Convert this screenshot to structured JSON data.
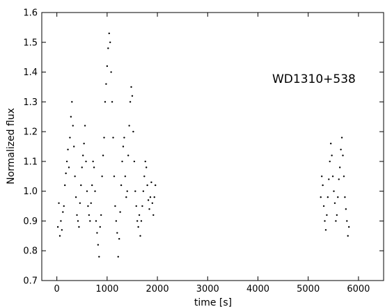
{
  "chart_data": {
    "type": "scatter",
    "title": "",
    "annotation": "WD1310+538",
    "xlabel": "time [s]",
    "ylabel": "Normalized flux",
    "xlim": [
      -300,
      6500
    ],
    "ylim": [
      0.7,
      1.6
    ],
    "grid": false,
    "legend": "none",
    "x_ticks": [
      0,
      1000,
      2000,
      3000,
      4000,
      5000,
      6000
    ],
    "y_ticks": [
      0.7,
      0.8,
      0.9,
      1.0,
      1.1,
      1.2,
      1.3,
      1.4,
      1.5,
      1.6
    ],
    "x_tick_labels": [
      "0",
      "1000",
      "2000",
      "3000",
      "4000",
      "5000",
      "6000"
    ],
    "y_tick_labels": [
      "0.7",
      "0.8",
      "0.9",
      "1.0",
      "1.1",
      "1.2",
      "1.3",
      "1.4",
      "1.5",
      "1.6"
    ],
    "marker_color": "#000000",
    "series": [
      {
        "values": [
          [
            20,
            0.88
          ],
          [
            40,
            0.96
          ],
          [
            60,
            0.85
          ],
          [
            80,
            0.9
          ],
          [
            100,
            0.87
          ],
          [
            120,
            0.93
          ],
          [
            140,
            0.95
          ],
          [
            160,
            1.02
          ],
          [
            180,
            1.06
          ],
          [
            200,
            1.1
          ],
          [
            220,
            1.14
          ],
          [
            240,
            1.08
          ],
          [
            260,
            1.18
          ],
          [
            280,
            1.25
          ],
          [
            300,
            1.3
          ],
          [
            320,
            1.22
          ],
          [
            340,
            1.15
          ],
          [
            360,
            1.05
          ],
          [
            380,
            0.98
          ],
          [
            400,
            0.92
          ],
          [
            420,
            0.9
          ],
          [
            440,
            0.88
          ],
          [
            460,
            0.96
          ],
          [
            480,
            1.02
          ],
          [
            500,
            1.08
          ],
          [
            520,
            1.12
          ],
          [
            540,
            1.16
          ],
          [
            560,
            1.22
          ],
          [
            580,
            1.1
          ],
          [
            600,
            1.0
          ],
          [
            620,
            0.95
          ],
          [
            640,
            0.92
          ],
          [
            660,
            0.9
          ],
          [
            680,
            0.96
          ],
          [
            700,
            1.02
          ],
          [
            720,
            1.1
          ],
          [
            740,
            1.08
          ],
          [
            760,
            1.0
          ],
          [
            780,
            0.9
          ],
          [
            800,
            0.86
          ],
          [
            820,
            0.82
          ],
          [
            840,
            0.78
          ],
          [
            860,
            0.88
          ],
          [
            880,
            0.92
          ],
          [
            900,
            1.05
          ],
          [
            920,
            1.12
          ],
          [
            940,
            1.18
          ],
          [
            960,
            1.3
          ],
          [
            980,
            1.36
          ],
          [
            1000,
            1.42
          ],
          [
            1020,
            1.48
          ],
          [
            1040,
            1.53
          ],
          [
            1060,
            1.5
          ],
          [
            1080,
            1.4
          ],
          [
            1100,
            1.3
          ],
          [
            1120,
            1.18
          ],
          [
            1140,
            1.05
          ],
          [
            1160,
            0.95
          ],
          [
            1180,
            0.9
          ],
          [
            1200,
            0.86
          ],
          [
            1220,
            0.78
          ],
          [
            1240,
            0.84
          ],
          [
            1260,
            0.93
          ],
          [
            1280,
            1.02
          ],
          [
            1300,
            1.1
          ],
          [
            1320,
            1.15
          ],
          [
            1340,
            1.18
          ],
          [
            1360,
            1.05
          ],
          [
            1380,
            0.98
          ],
          [
            1400,
            1.0
          ],
          [
            1420,
            1.12
          ],
          [
            1440,
            1.22
          ],
          [
            1460,
            1.3
          ],
          [
            1480,
            1.35
          ],
          [
            1500,
            1.32
          ],
          [
            1520,
            1.2
          ],
          [
            1540,
            1.1
          ],
          [
            1560,
            1.0
          ],
          [
            1580,
            0.95
          ],
          [
            1600,
            0.9
          ],
          [
            1620,
            0.88
          ],
          [
            1640,
            0.92
          ],
          [
            1660,
            0.85
          ],
          [
            1680,
            0.9
          ],
          [
            1700,
            0.95
          ],
          [
            1720,
            1.0
          ],
          [
            1740,
            1.05
          ],
          [
            1760,
            1.1
          ],
          [
            1780,
            1.08
          ],
          [
            1800,
            1.02
          ],
          [
            1820,
            0.97
          ],
          [
            1840,
            0.94
          ],
          [
            1860,
            0.98
          ],
          [
            1880,
            1.03
          ],
          [
            1900,
            0.96
          ],
          [
            1920,
            0.92
          ],
          [
            1940,
            0.98
          ],
          [
            1960,
            1.02
          ],
          [
            5250,
            0.98
          ],
          [
            5270,
            1.05
          ],
          [
            5290,
            1.02
          ],
          [
            5310,
            0.95
          ],
          [
            5330,
            0.9
          ],
          [
            5350,
            0.87
          ],
          [
            5370,
            0.92
          ],
          [
            5390,
            0.98
          ],
          [
            5410,
            1.04
          ],
          [
            5430,
            1.1
          ],
          [
            5450,
            1.16
          ],
          [
            5470,
            1.12
          ],
          [
            5490,
            1.05
          ],
          [
            5510,
            1.0
          ],
          [
            5530,
            0.96
          ],
          [
            5550,
            0.9
          ],
          [
            5570,
            0.92
          ],
          [
            5590,
            0.98
          ],
          [
            5610,
            1.04
          ],
          [
            5630,
            1.08
          ],
          [
            5650,
            1.14
          ],
          [
            5670,
            1.18
          ],
          [
            5690,
            1.12
          ],
          [
            5710,
            1.05
          ],
          [
            5730,
            0.98
          ],
          [
            5750,
            0.94
          ],
          [
            5770,
            0.9
          ],
          [
            5790,
            0.85
          ],
          [
            5810,
            0.88
          ]
        ]
      }
    ]
  }
}
